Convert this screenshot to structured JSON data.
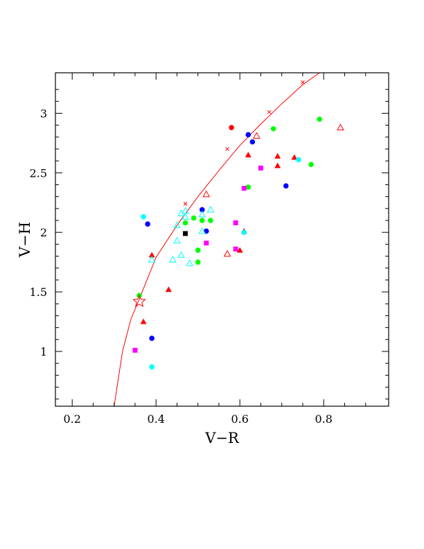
{
  "chart_data": {
    "type": "scatter",
    "title": "",
    "xlabel": "V−R",
    "ylabel": "V−H",
    "xlim": [
      0.16,
      0.955
    ],
    "ylim": [
      0.54,
      3.34
    ],
    "xticks": [
      0.2,
      0.4,
      0.6,
      0.8
    ],
    "xtick_labels": [
      "0.2",
      "0.4",
      "0.6",
      "0.8"
    ],
    "yticks": [
      1,
      1.5,
      2,
      2.5,
      3
    ],
    "ytick_labels": [
      "1",
      "1.5",
      "2",
      "2.5",
      "3"
    ],
    "grid": false,
    "curve": {
      "name": "",
      "color": "#ff0000",
      "points": [
        [
          0.3,
          0.54
        ],
        [
          0.32,
          1.0
        ],
        [
          0.34,
          1.27
        ],
        [
          0.36,
          1.44
        ],
        [
          0.4,
          1.79
        ],
        [
          0.45,
          2.06
        ],
        [
          0.5,
          2.3
        ],
        [
          0.55,
          2.52
        ],
        [
          0.6,
          2.73
        ],
        [
          0.65,
          2.91
        ],
        [
          0.7,
          3.08
        ],
        [
          0.75,
          3.24
        ],
        [
          0.79,
          3.34
        ]
      ],
      "markers": [
        [
          0.47,
          2.24
        ],
        [
          0.57,
          2.7
        ],
        [
          0.67,
          3.01
        ],
        [
          0.75,
          3.26
        ]
      ]
    },
    "star": {
      "x": 0.36,
      "y": 1.42,
      "color": "#ff0000"
    },
    "series": [
      {
        "marker": "filled-triangle",
        "color": "#ff0000",
        "x": [
          0.37,
          0.39,
          0.43,
          0.6,
          0.61,
          0.62,
          0.69,
          0.69,
          0.73
        ],
        "y": [
          1.25,
          1.81,
          1.52,
          1.85,
          2.01,
          2.65,
          2.64,
          2.56,
          2.63
        ]
      },
      {
        "marker": "open-triangle",
        "color": "#ff0000",
        "x": [
          0.52,
          0.57,
          0.64,
          0.84
        ],
        "y": [
          2.32,
          1.82,
          2.81,
          2.88
        ]
      },
      {
        "marker": "filled-circle",
        "color": "#ff0000",
        "x": [
          0.58
        ],
        "y": [
          2.88
        ]
      },
      {
        "marker": "filled-circle",
        "color": "#0000ff",
        "x": [
          0.38,
          0.39,
          0.51,
          0.52,
          0.62,
          0.63,
          0.71
        ],
        "y": [
          2.07,
          1.11,
          2.19,
          2.01,
          2.82,
          2.76,
          2.39
        ]
      },
      {
        "marker": "filled-circle",
        "color": "#00ff00",
        "x": [
          0.36,
          0.47,
          0.49,
          0.5,
          0.5,
          0.51,
          0.53,
          0.62,
          0.68,
          0.79,
          0.77
        ],
        "y": [
          1.47,
          2.08,
          2.12,
          1.85,
          1.75,
          2.1,
          2.1,
          2.38,
          2.87,
          2.95,
          2.57
        ]
      },
      {
        "marker": "filled-circle",
        "color": "#00ffff",
        "x": [
          0.37,
          0.39,
          0.61,
          0.74
        ],
        "y": [
          2.13,
          0.87,
          2.0,
          2.61
        ]
      },
      {
        "marker": "open-triangle",
        "color": "#00ffff",
        "x": [
          0.39,
          0.44,
          0.45,
          0.46,
          0.45,
          0.46,
          0.47,
          0.47,
          0.48,
          0.51,
          0.51,
          0.53
        ],
        "y": [
          1.77,
          1.77,
          2.06,
          1.81,
          1.93,
          2.16,
          2.13,
          2.18,
          1.74,
          2.01,
          2.15,
          2.19
        ]
      },
      {
        "marker": "filled-square",
        "color": "#ff00ff",
        "x": [
          0.35,
          0.52,
          0.59,
          0.59,
          0.61,
          0.65
        ],
        "y": [
          1.01,
          1.91,
          2.08,
          1.86,
          2.37,
          2.54
        ]
      },
      {
        "marker": "filled-square",
        "color": "#000000",
        "x": [
          0.47
        ],
        "y": [
          1.99
        ]
      }
    ]
  }
}
